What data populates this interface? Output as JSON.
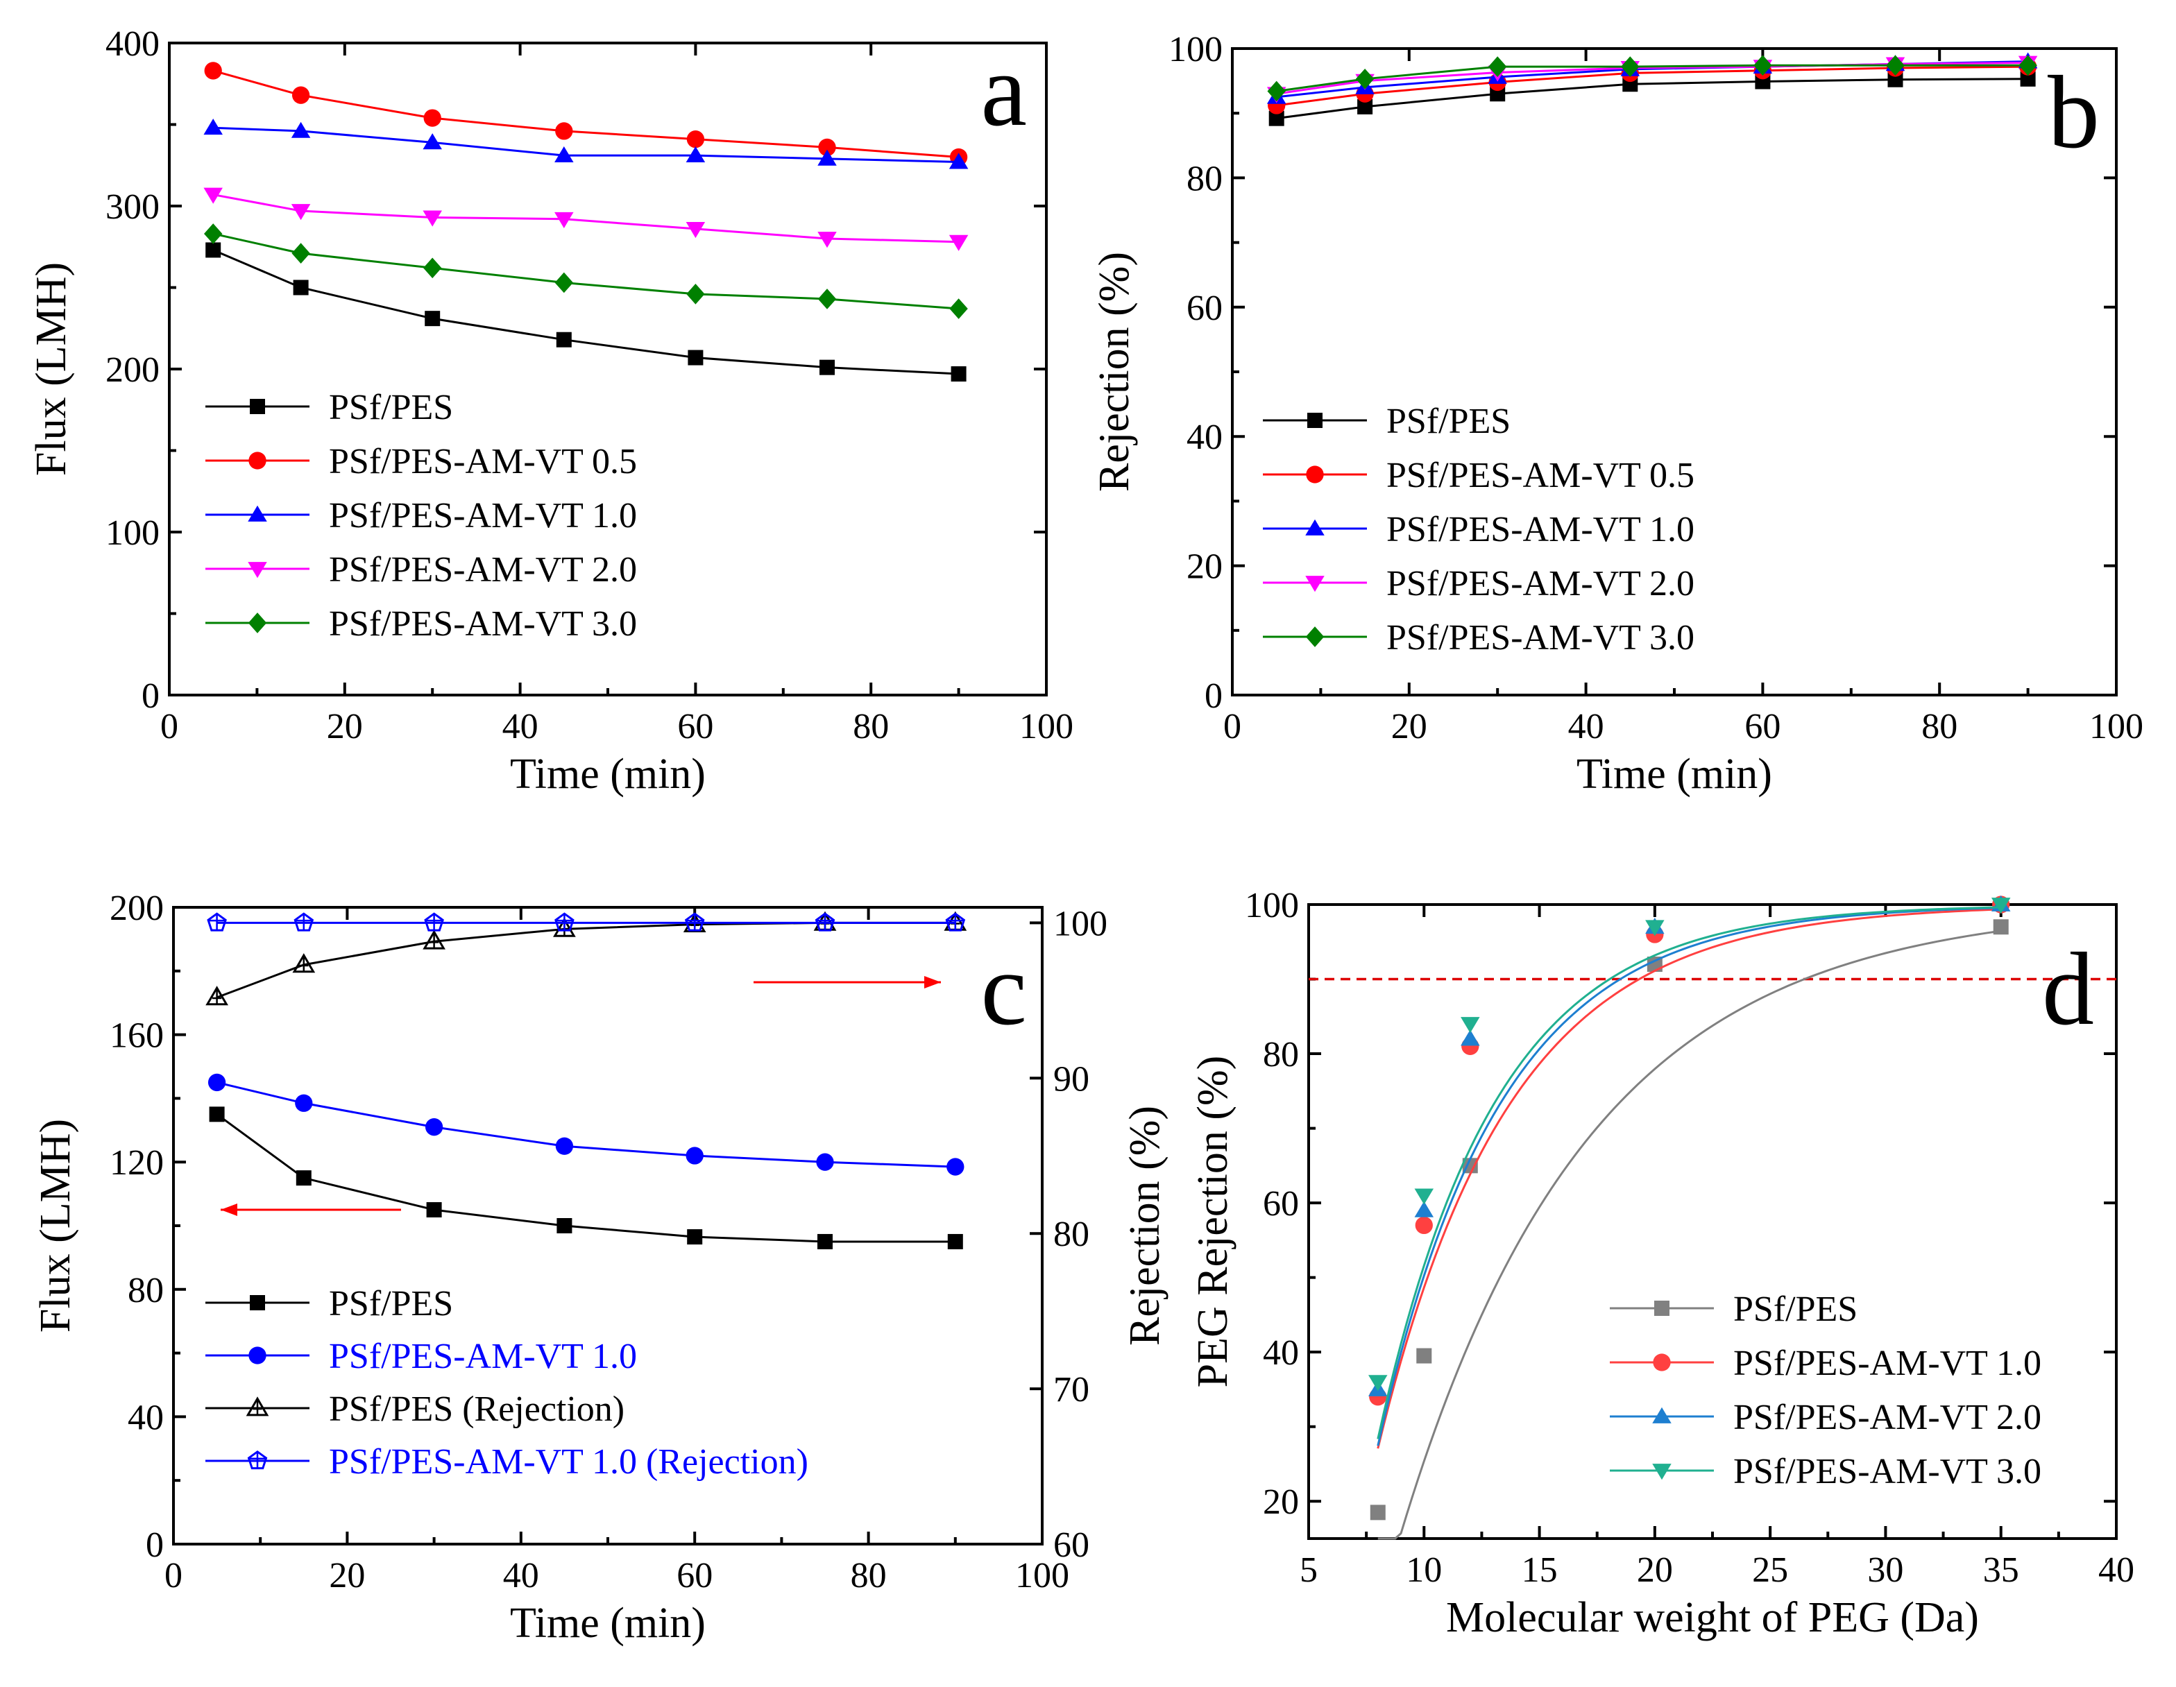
{
  "chart_data": [
    {
      "panel": "a",
      "type": "line",
      "xlabel": "Time (min)",
      "ylabel": "Flux (LMH)",
      "xlim": [
        0,
        100
      ],
      "ylim": [
        0,
        400
      ],
      "xticks": [
        0,
        20,
        40,
        60,
        80,
        100
      ],
      "yticks": [
        0,
        100,
        200,
        300,
        400
      ],
      "x": [
        5,
        15,
        30,
        45,
        60,
        75,
        90
      ],
      "legend_position": "lower-left",
      "series": [
        {
          "name": "PSf/PES",
          "color": "#000000",
          "marker": "square",
          "values": [
            273,
            250,
            231,
            218,
            207,
            201,
            197
          ]
        },
        {
          "name": "PSf/PES-AM-VT 0.5",
          "color": "#ff0000",
          "marker": "circle",
          "values": [
            383,
            368,
            354,
            346,
            341,
            336,
            330
          ]
        },
        {
          "name": "PSf/PES-AM-VT 1.0",
          "color": "#0000ff",
          "marker": "triangle-up",
          "values": [
            348,
            346,
            339,
            331,
            331,
            329,
            327
          ]
        },
        {
          "name": "PSf/PES-AM-VT 2.0",
          "color": "#ff00ff",
          "marker": "triangle-down",
          "values": [
            307,
            297,
            293,
            292,
            286,
            280,
            278
          ]
        },
        {
          "name": "PSf/PES-AM-VT 3.0",
          "color": "#008000",
          "marker": "diamond",
          "values": [
            283,
            271,
            262,
            253,
            246,
            243,
            237
          ]
        }
      ]
    },
    {
      "panel": "b",
      "type": "line",
      "xlabel": "Time (min)",
      "ylabel": "Rejection (%)",
      "xlim": [
        0,
        100
      ],
      "ylim": [
        0,
        100
      ],
      "xticks": [
        0,
        20,
        40,
        60,
        80,
        100
      ],
      "yticks": [
        0,
        20,
        40,
        60,
        80,
        100
      ],
      "x": [
        5,
        15,
        30,
        45,
        60,
        75,
        90
      ],
      "legend_position": "lower-left",
      "series": [
        {
          "name": "PSf/PES",
          "color": "#000000",
          "marker": "square",
          "values": [
            89.2,
            91.0,
            93.0,
            94.5,
            94.9,
            95.2,
            95.3
          ]
        },
        {
          "name": "PSf/PES-AM-VT 0.5",
          "color": "#ff0000",
          "marker": "circle",
          "values": [
            91.2,
            93.0,
            94.8,
            96.2,
            96.6,
            97.0,
            97.2
          ]
        },
        {
          "name": "PSf/PES-AM-VT 1.0",
          "color": "#0000ff",
          "marker": "triangle-up",
          "values": [
            92.5,
            94.0,
            95.6,
            96.8,
            97.2,
            97.6,
            98.0
          ]
        },
        {
          "name": "PSf/PES-AM-VT 2.0",
          "color": "#ff00ff",
          "marker": "triangle-down",
          "values": [
            93.0,
            95.0,
            96.3,
            97.0,
            97.2,
            97.6,
            97.8
          ]
        },
        {
          "name": "PSf/PES-AM-VT 3.0",
          "color": "#008000",
          "marker": "diamond",
          "values": [
            93.4,
            95.3,
            97.2,
            97.2,
            97.4,
            97.4,
            97.4
          ]
        }
      ]
    },
    {
      "panel": "c",
      "type": "line",
      "xlabel": "Time (min)",
      "ylabel": "Flux (LMH)",
      "ylabel_right": "Rejection (%)",
      "xlim": [
        0,
        100
      ],
      "ylim": [
        0,
        200
      ],
      "ylim_right": [
        60,
        101
      ],
      "xticks": [
        0,
        20,
        40,
        60,
        80,
        100
      ],
      "yticks": [
        0,
        40,
        80,
        120,
        160,
        200
      ],
      "yticks_right": [
        60,
        70,
        80,
        90,
        100
      ],
      "x": [
        5,
        15,
        30,
        45,
        60,
        75,
        90
      ],
      "legend_position": "lower-left",
      "series": [
        {
          "name": "PSf/PES",
          "axis": "left",
          "color": "#000000",
          "marker": "square",
          "values": [
            135,
            115,
            105,
            100,
            96.5,
            95,
            95
          ]
        },
        {
          "name": "PSf/PES-AM-VT 1.0",
          "axis": "left",
          "color": "#0000ff",
          "marker": "circle",
          "values": [
            145,
            138.5,
            131,
            125,
            122,
            120,
            118.5
          ]
        },
        {
          "name": "PSf/PES (Rejection)",
          "axis": "right",
          "color": "#000000",
          "marker": "open-triangle",
          "values": [
            95.2,
            97.3,
            98.8,
            99.6,
            99.9,
            100,
            100
          ]
        },
        {
          "name": "PSf/PES-AM-VT 1.0 (Rejection)",
          "axis": "right",
          "color": "#0000ff",
          "marker": "open-pentagon",
          "values": [
            100,
            100,
            100,
            100,
            100,
            100,
            100
          ]
        }
      ],
      "annotations": [
        {
          "type": "arrow",
          "direction": "left",
          "color": "#ff0000",
          "points_to": "left axis"
        },
        {
          "type": "arrow",
          "direction": "right",
          "color": "#ff0000",
          "points_to": "right axis"
        }
      ]
    },
    {
      "panel": "d",
      "type": "scatter",
      "xlabel": "Molecular weight of PEG (Da)",
      "ylabel": "PEG Rejection (%)",
      "xlim": [
        5,
        40
      ],
      "ylim": [
        15,
        100
      ],
      "xticks": [
        5,
        10,
        15,
        20,
        25,
        30,
        35,
        40
      ],
      "yticks": [
        20,
        40,
        60,
        80,
        100
      ],
      "x": [
        8,
        10,
        12,
        20,
        35
      ],
      "reference_line": {
        "y": 90,
        "color": "#dd0000",
        "style": "dashed"
      },
      "legend_position": "lower-right",
      "series": [
        {
          "name": "PSf/PES",
          "color": "#808080",
          "marker": "square",
          "values": [
            18.5,
            39.5,
            65,
            92,
            97
          ],
          "fit": {
            "ymax": 100,
            "x0": 7.6,
            "tau": 8.2
          }
        },
        {
          "name": "PSf/PES-AM-VT 1.0",
          "color": "#ff4040",
          "marker": "circle",
          "values": [
            34,
            57,
            81,
            96,
            100
          ],
          "fit": {
            "ymax": 100,
            "x0": 6.2,
            "tau": 5.7
          }
        },
        {
          "name": "PSf/PES-AM-VT 2.0",
          "color": "#1e7fd0",
          "marker": "triangle-up",
          "values": [
            35,
            59,
            82,
            97,
            100
          ],
          "fit": {
            "ymax": 100,
            "x0": 6.3,
            "tau": 5.3
          }
        },
        {
          "name": "PSf/PES-AM-VT 3.0",
          "color": "#20b090",
          "marker": "triangle-down",
          "values": [
            36,
            61,
            84,
            97,
            100
          ],
          "fit": {
            "ymax": 100,
            "x0": 6.3,
            "tau": 5.1
          }
        }
      ]
    }
  ]
}
